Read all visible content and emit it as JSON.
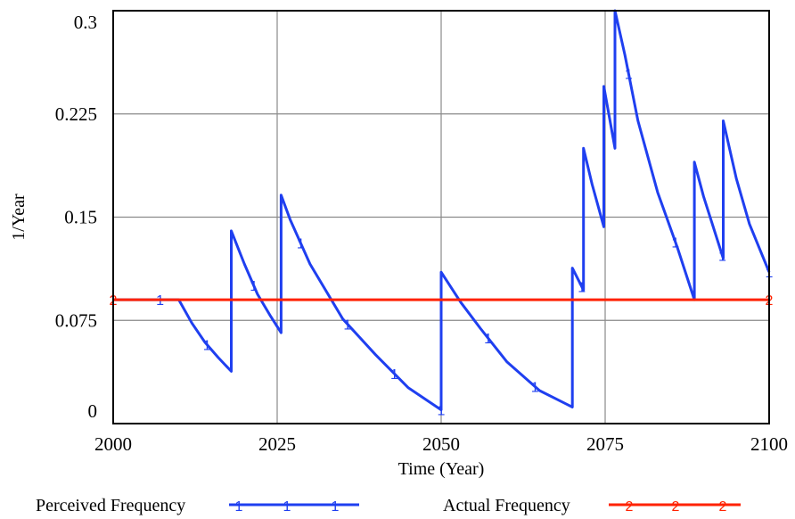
{
  "chart_data": {
    "type": "line",
    "title": "",
    "xlabel": "Time (Year)",
    "ylabel": "1/Year",
    "xlim": [
      2000,
      2100
    ],
    "ylim": [
      0,
      0.3
    ],
    "x_ticks": [
      "2000",
      "2025",
      "2050",
      "2075",
      "2100"
    ],
    "y_ticks": [
      "0",
      "0.075",
      "0.15",
      "0.225",
      "0.3"
    ],
    "grid": true,
    "legend_position": "bottom",
    "series": [
      {
        "name": "Perceived Frequency",
        "marker": "1",
        "color": "#1f3ff0",
        "x": [
          2000,
          2010,
          2012,
          2014,
          2016,
          2018,
          2018,
          2020,
          2022,
          2024,
          2025.6,
          2025.6,
          2027,
          2030,
          2035,
          2040,
          2045,
          2050,
          2050,
          2053,
          2056,
          2060,
          2065,
          2070,
          2070,
          2071.7,
          2071.7,
          2073,
          2074.8,
          2074.8,
          2076.5,
          2076.5,
          2078,
          2080,
          2083,
          2086,
          2088.6,
          2088.6,
          2090,
          2093,
          2093,
          2095,
          2097,
          2100
        ],
        "y": [
          0.09,
          0.09,
          0.073,
          0.059,
          0.048,
          0.038,
          0.14,
          0.116,
          0.094,
          0.078,
          0.066,
          0.166,
          0.148,
          0.116,
          0.076,
          0.05,
          0.026,
          0.01,
          0.11,
          0.088,
          0.069,
          0.045,
          0.024,
          0.012,
          0.113,
          0.097,
          0.2,
          0.174,
          0.143,
          0.245,
          0.2,
          0.3,
          0.268,
          0.22,
          0.168,
          0.128,
          0.09,
          0.19,
          0.165,
          0.12,
          0.22,
          0.178,
          0.145,
          0.11
        ]
      },
      {
        "name": "Actual Frequency",
        "marker": "2",
        "color": "#ff2200",
        "x": [
          2000,
          2100
        ],
        "y": [
          0.09,
          0.09
        ]
      }
    ]
  }
}
